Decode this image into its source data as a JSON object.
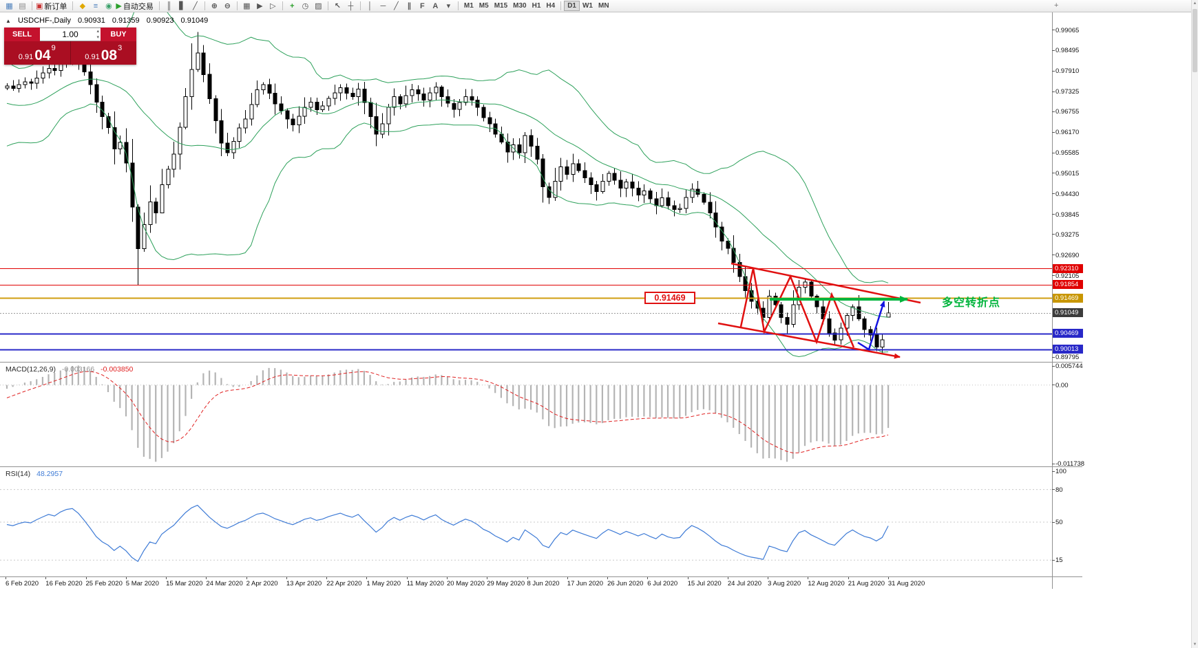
{
  "toolbar": {
    "overflow_glyph": "+",
    "groups": [
      {
        "items": [
          {
            "name": "new-chart-icon",
            "glyph": "▦",
            "color": "#4a7ebb"
          },
          {
            "name": "chart-profiles-icon",
            "glyph": "▤",
            "color": "#8a8a8a"
          }
        ]
      },
      {
        "items": [
          {
            "name": "new-order-button",
            "glyph": "▣",
            "color": "#c83232",
            "label": "新订单"
          }
        ]
      },
      {
        "items": [
          {
            "name": "metaeditor-icon",
            "glyph": "◆",
            "color": "#e0a800"
          },
          {
            "name": "terminal-icon",
            "glyph": "≡",
            "color": "#4a7ebb"
          },
          {
            "name": "market-watch-icon",
            "glyph": "◉",
            "color": "#3aa06a"
          },
          {
            "name": "autotrading-button",
            "glyph": "▶",
            "color": "#2ca02c",
            "label": "自动交易"
          }
        ]
      },
      {
        "items": [
          {
            "name": "bar-chart-icon",
            "glyph": "║",
            "color": "#555555"
          },
          {
            "name": "candlestick-chart-icon",
            "glyph": "▋",
            "color": "#555555"
          },
          {
            "name": "line-chart-icon",
            "glyph": "╱",
            "color": "#555555"
          }
        ]
      },
      {
        "items": [
          {
            "name": "zoom-in-icon",
            "glyph": "⊕",
            "color": "#555555"
          },
          {
            "name": "zoom-out-icon",
            "glyph": "⊖",
            "color": "#555555"
          }
        ]
      },
      {
        "items": [
          {
            "name": "tile-windows-icon",
            "glyph": "▦",
            "color": "#555555"
          },
          {
            "name": "auto-scroll-icon",
            "glyph": "▶",
            "color": "#555555"
          },
          {
            "name": "chart-shift-icon",
            "glyph": "▷",
            "color": "#555555"
          }
        ]
      },
      {
        "items": [
          {
            "name": "indicators-icon",
            "glyph": "+",
            "color": "#2ca02c"
          },
          {
            "name": "periods-icon",
            "glyph": "◷",
            "color": "#555555"
          },
          {
            "name": "templates-icon",
            "glyph": "▨",
            "color": "#555555"
          }
        ]
      },
      {
        "items": [
          {
            "name": "cursor-icon",
            "glyph": "↖",
            "color": "#555555"
          },
          {
            "name": "crosshair-icon",
            "glyph": "┼",
            "color": "#555555"
          }
        ]
      },
      {
        "items": [
          {
            "name": "vertical-line-icon",
            "glyph": "│",
            "color": "#555555"
          },
          {
            "name": "horizontal-line-icon",
            "glyph": "─",
            "color": "#555555"
          },
          {
            "name": "trendline-icon",
            "glyph": "╱",
            "color": "#555555"
          },
          {
            "name": "channel-icon",
            "glyph": "∥",
            "color": "#555555"
          },
          {
            "name": "fibonacci-icon",
            "glyph": "F",
            "color": "#555555"
          },
          {
            "name": "text-icon",
            "glyph": "A",
            "color": "#555555"
          },
          {
            "name": "arrows-icon",
            "glyph": "▾",
            "color": "#555555"
          }
        ]
      }
    ],
    "timeframes": [
      {
        "label": "M1"
      },
      {
        "label": "M5"
      },
      {
        "label": "M15"
      },
      {
        "label": "M30"
      },
      {
        "label": "H1"
      },
      {
        "label": "H4"
      },
      {
        "label": "D1",
        "active": true
      },
      {
        "label": "W1"
      },
      {
        "label": "MN"
      }
    ]
  },
  "symbol_info": {
    "toggle_glyph": "▲",
    "title": "USDCHF-,Daily",
    "open": "0.90931",
    "high": "0.91359",
    "low": "0.90923",
    "close": "0.91049"
  },
  "trade_panel": {
    "sell_label": "SELL",
    "buy_label": "BUY",
    "volume": "1.00",
    "spin_up_glyph": "▴",
    "spin_down_glyph": "▾",
    "sell": {
      "prefix": "0.91",
      "big": "04",
      "sup": "9"
    },
    "buy": {
      "prefix": "0.91",
      "big": "08",
      "sup": "3"
    }
  },
  "price_axis": {
    "labels": [
      "0.99065",
      "0.98495",
      "0.97910",
      "0.97325",
      "0.96755",
      "0.96170",
      "0.95585",
      "0.95015",
      "0.94430",
      "0.93845",
      "0.93275",
      "0.92690",
      "0.92105",
      "0.89795"
    ],
    "tags": [
      {
        "value": "0.92310",
        "color": "#e00000"
      },
      {
        "value": "0.91854",
        "color": "#e00000"
      },
      {
        "value": "0.91469",
        "color": "#c89600"
      },
      {
        "value": "0.91049",
        "color": "#3c3c3c"
      },
      {
        "value": "0.90469",
        "color": "#2828c8"
      },
      {
        "value": "0.90013",
        "color": "#2828c8"
      }
    ]
  },
  "hlines": [
    {
      "price": 0.9231,
      "color": "#e00000",
      "width": 1
    },
    {
      "price": 0.91854,
      "color": "#e00000",
      "width": 1
    },
    {
      "price": 0.91469,
      "color": "#d09e10",
      "width": 2
    },
    {
      "price": 0.91049,
      "color": "#999999",
      "width": 1,
      "dash": "2,2"
    },
    {
      "price": 0.90469,
      "color": "#2828c8",
      "width": 2
    },
    {
      "price": 0.90013,
      "color": "#2828c8",
      "width": 2
    }
  ],
  "annotations": {
    "price_label": "0.91469",
    "turning_point": "多空转折点"
  },
  "macd_panel": {
    "name": "MACD(12,26,9)",
    "value1": "-0.003166",
    "value2": "-0.003850",
    "axis": [
      "0.005744",
      "0.00",
      "-0.011738"
    ]
  },
  "rsi_panel": {
    "name": "RSI(14)",
    "value": "48.2957",
    "axis": [
      "100",
      "80",
      "50",
      "15"
    ],
    "levels": [
      80,
      50,
      15
    ]
  },
  "date_axis": [
    "6 Feb 2020",
    "16 Feb 2020",
    "25 Feb 2020",
    "5 Mar 2020",
    "15 Mar 2020",
    "24 Mar 2020",
    "2 Apr 2020",
    "13 Apr 2020",
    "22 Apr 2020",
    "1 May 2020",
    "11 May 2020",
    "20 May 2020",
    "29 May 2020",
    "8 Jun 2020",
    "17 Jun 2020",
    "26 Jun 2020",
    "6 Jul 2020",
    "15 Jul 2020",
    "24 Jul 2020",
    "3 Aug 2020",
    "12 Aug 2020",
    "21 Aug 2020",
    "31 Aug 2020"
  ],
  "scrollbar": {
    "up_glyph": "▲",
    "down_glyph": "▼"
  },
  "colors": {
    "bull": "#ffffff",
    "bear": "#000000",
    "wick": "#000000",
    "bollinger": "#2ca05a",
    "macd_hist": "#b4b4b4",
    "macd_signal": "#e02020",
    "rsi": "#3e7bd6",
    "annotation_red": "#e01010",
    "annotation_green": "#00b43c",
    "annotation_blue": "#1414e0"
  },
  "chart_data": {
    "type": "candlestick",
    "symbol": "USDCHF-",
    "timeframe": "Daily",
    "ohlc_display": {
      "open": 0.90931,
      "high": 0.91359,
      "low": 0.90923,
      "close": 0.91049
    },
    "levels": [
      0.9231,
      0.91854,
      0.91469,
      0.90469,
      0.90013
    ],
    "indicators": {
      "bollinger_period": 20,
      "bollinger_dev": 2,
      "macd": [
        12,
        26,
        9
      ],
      "rsi": 14
    },
    "prehistory": [
      0.9785,
      0.9812,
      0.9795,
      0.9752,
      0.9708,
      0.9672,
      0.9638,
      0.9605,
      0.9582,
      0.9601,
      0.9638,
      0.9672,
      0.9705,
      0.9722,
      0.9698,
      0.9712,
      0.9728,
      0.9718,
      0.9729,
      0.9742
    ],
    "closes": [
      0.9748,
      0.9741,
      0.9752,
      0.976,
      0.9756,
      0.9771,
      0.9785,
      0.9798,
      0.9792,
      0.9812,
      0.9826,
      0.9831,
      0.9815,
      0.9788,
      0.9752,
      0.9702,
      0.9661,
      0.963,
      0.957,
      0.9588,
      0.953,
      0.9405,
      0.9287,
      0.9355,
      0.942,
      0.9388,
      0.9468,
      0.9512,
      0.9555,
      0.9631,
      0.9718,
      0.9795,
      0.9842,
      0.9781,
      0.9712,
      0.965,
      0.9586,
      0.9559,
      0.9591,
      0.9629,
      0.9655,
      0.9696,
      0.9738,
      0.9752,
      0.9728,
      0.9698,
      0.9678,
      0.9655,
      0.9638,
      0.9662,
      0.9688,
      0.9702,
      0.9681,
      0.9692,
      0.9713,
      0.9729,
      0.9743,
      0.9728,
      0.9718,
      0.9739,
      0.9701,
      0.9661,
      0.9612,
      0.9641,
      0.9688,
      0.9718,
      0.9698,
      0.9721,
      0.9738,
      0.9726,
      0.9708,
      0.9729,
      0.9745,
      0.9718,
      0.9699,
      0.9682,
      0.9701,
      0.9718,
      0.9708,
      0.9688,
      0.9659,
      0.9641,
      0.9612,
      0.9589,
      0.9561,
      0.9581,
      0.9559,
      0.9608,
      0.9578,
      0.9541,
      0.9462,
      0.9432,
      0.9478,
      0.9519,
      0.9498,
      0.9528,
      0.9508,
      0.9488,
      0.9468,
      0.9449,
      0.9478,
      0.9501,
      0.9481,
      0.9459,
      0.9476,
      0.9459,
      0.9439,
      0.9451,
      0.9428,
      0.9409,
      0.9431,
      0.9409,
      0.9398,
      0.9401,
      0.9432,
      0.9456,
      0.9441,
      0.9419,
      0.9388,
      0.9348,
      0.9308,
      0.9288,
      0.9248,
      0.9208,
      0.9168,
      0.9138,
      0.9118,
      0.9092,
      0.9152,
      0.9128,
      0.9092,
      0.9072,
      0.9128,
      0.9178,
      0.9192,
      0.9152,
      0.9122,
      0.9088,
      0.9048,
      0.9028,
      0.9062,
      0.9098,
      0.9122,
      0.9088,
      0.9058,
      0.9042,
      0.9008,
      0.9028,
      0.91049
    ],
    "wick_overrides": {
      "9": {
        "high": 0.9841
      },
      "11": {
        "high": 0.9839
      },
      "22": {
        "low": 0.9183
      },
      "26": {
        "low": 0.939
      },
      "31": {
        "high": 0.9869
      },
      "32": {
        "high": 0.9901
      },
      "37": {
        "low": 0.9549
      },
      "62": {
        "low": 0.9578
      },
      "91": {
        "low": 0.9414
      },
      "115": {
        "high": 0.9472
      },
      "127": {
        "low": 0.9056
      },
      "131": {
        "low": 0.9046
      },
      "134": {
        "high": 0.92
      },
      "139": {
        "low": 0.9014
      },
      "146": {
        "low": 0.8996
      }
    },
    "last_candle": {
      "open": 0.90931,
      "high": 0.91359,
      "low": 0.90923,
      "close": 0.91049
    }
  }
}
